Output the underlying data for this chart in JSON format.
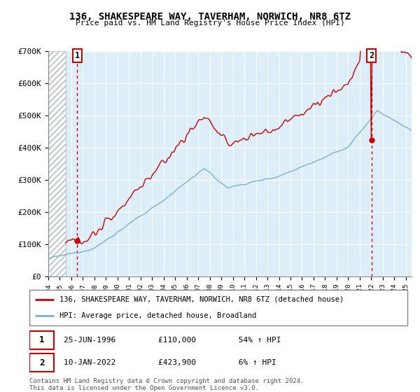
{
  "title": "136, SHAKESPEARE WAY, TAVERHAM, NORWICH, NR8 6TZ",
  "subtitle": "Price paid vs. HM Land Registry's House Price Index (HPI)",
  "ylim": [
    0,
    700000
  ],
  "yticks": [
    0,
    100000,
    200000,
    300000,
    400000,
    500000,
    600000,
    700000
  ],
  "ytick_labels": [
    "£0",
    "£100K",
    "£200K",
    "£300K",
    "£400K",
    "£500K",
    "£600K",
    "£700K"
  ],
  "hpi_color": "#7ab0d4",
  "price_color": "#cc0000",
  "marker_color": "#cc0000",
  "bg_color": "#deeef8",
  "legend_entries": [
    "136, SHAKESPEARE WAY, TAVERHAM, NORWICH, NR8 6TZ (detached house)",
    "HPI: Average price, detached house, Broadland"
  ],
  "sale1_year": 1996.49,
  "sale1_price": 110000,
  "sale2_year": 2022.03,
  "sale2_price": 423900,
  "footer": "Contains HM Land Registry data © Crown copyright and database right 2024.\nThis data is licensed under the Open Government Licence v3.0.",
  "xmin": 1994,
  "xmax": 2025.5
}
